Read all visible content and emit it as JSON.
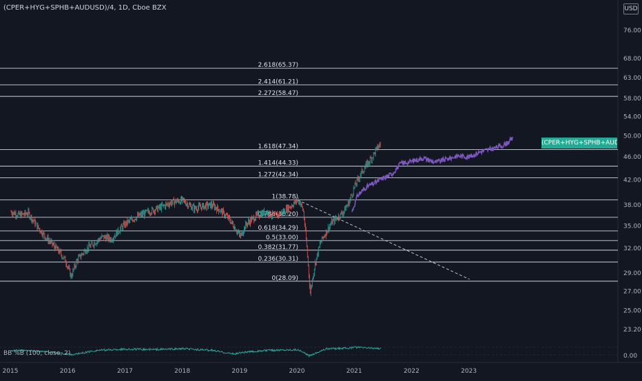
{
  "header": {
    "title": "(CPER+HYG+SPHB+AUDUSD)/4, 1D, Cboe BZX",
    "currency_badge": "USD"
  },
  "indicator": {
    "label": "BB %B (100, close, 2)"
  },
  "series_tag": "(CPER+HYG+SPHB+AUDUSD)/4",
  "colors": {
    "background": "#131722",
    "up_candle": "#26a69a",
    "down_candle": "#ef5350",
    "projection": "#7e57c2",
    "fib_line": "#d1d4dc",
    "bb_line": "#26a69a",
    "tag": "#22ab94"
  },
  "chart_data": [
    {
      "type": "line",
      "title": "",
      "x_ticks": [
        "2015",
        "2016",
        "2017",
        "2018",
        "2019",
        "2020",
        "2021",
        "2022",
        "2023"
      ],
      "y_ticks": [
        76.0,
        68.0,
        63.0,
        58.0,
        54.0,
        50.0,
        46.0,
        42.0,
        38.0,
        35.0,
        32.0,
        29.0,
        27.0,
        25.0,
        23.2
      ],
      "ylim": [
        21.5,
        82
      ],
      "scale": "log",
      "grid": false,
      "series": [
        {
          "name": "(CPER+HYG+SPHB+AUDUSD)/4",
          "x": [
            2015.0,
            2015.15,
            2015.3,
            2015.45,
            2015.6,
            2015.75,
            2015.85,
            2015.95,
            2016.05,
            2016.15,
            2016.3,
            2016.45,
            2016.6,
            2016.75,
            2016.9,
            2017.0,
            2017.2,
            2017.4,
            2017.6,
            2017.8,
            2018.0,
            2018.1,
            2018.2,
            2018.35,
            2018.5,
            2018.65,
            2018.8,
            2018.9,
            2019.0,
            2019.1,
            2019.3,
            2019.45,
            2019.6,
            2019.75,
            2019.9,
            2020.0,
            2020.05,
            2020.1,
            2020.15,
            2020.2,
            2020.22,
            2020.3,
            2020.4,
            2020.5,
            2020.6,
            2020.7,
            2020.8,
            2020.9,
            2021.0,
            2021.1,
            2021.2,
            2021.3,
            2021.4,
            2021.45
          ],
          "values": [
            37.0,
            36.5,
            36.8,
            35.0,
            33.5,
            32.3,
            31.5,
            30.5,
            28.6,
            30.5,
            31.8,
            32.7,
            33.5,
            33.2,
            34.5,
            35.3,
            36.3,
            37.0,
            37.6,
            38.4,
            38.7,
            38.0,
            37.5,
            37.8,
            38.0,
            37.2,
            36.0,
            34.8,
            33.5,
            35.2,
            36.5,
            37.0,
            36.3,
            37.0,
            38.0,
            38.78,
            38.3,
            37.0,
            33.0,
            28.5,
            26.8,
            30.0,
            32.8,
            34.2,
            35.5,
            36.2,
            37.0,
            38.5,
            41.0,
            43.0,
            44.5,
            46.0,
            47.8,
            48.5
          ]
        },
        {
          "name": "projection",
          "x": [
            2020.95,
            2021.05,
            2021.2,
            2021.35,
            2021.5,
            2021.65,
            2021.8,
            2022.0,
            2022.2,
            2022.4,
            2022.6,
            2022.8,
            2023.0,
            2023.2,
            2023.4,
            2023.6,
            2023.75
          ],
          "values": [
            37.0,
            39.5,
            40.8,
            41.5,
            42.3,
            43.0,
            44.8,
            45.2,
            45.8,
            45.0,
            45.6,
            46.2,
            46.0,
            47.0,
            47.5,
            48.2,
            49.4
          ]
        }
      ],
      "fib_levels": [
        {
          "label": "2.618(65.37)",
          "value": 65.37
        },
        {
          "label": "2.414(61.21)",
          "value": 61.21
        },
        {
          "label": "2.272(58.47)",
          "value": 58.47
        },
        {
          "label": "1.618(47.34)",
          "value": 47.34
        },
        {
          "label": "1.414(44.33)",
          "value": 44.33
        },
        {
          "label": "1.272(42.34)",
          "value": 42.34
        },
        {
          "label": "1(38.78)",
          "value": 38.78
        },
        {
          "label": "0.786(36.20)",
          "value": 36.2
        },
        {
          "label": "0.618(34.29)",
          "value": 34.29
        },
        {
          "label": "0.5(33.00)",
          "value": 33.0
        },
        {
          "label": "0.382(31.77)",
          "value": 31.77
        },
        {
          "label": "0.236(30.31)",
          "value": 30.31
        },
        {
          "label": "0(28.09)",
          "value": 28.09
        }
      ],
      "trendline": {
        "x": [
          2020.0,
          2023.0
        ],
        "values": [
          38.78,
          28.3
        ]
      }
    },
    {
      "type": "line",
      "title": "BB %B (100, close, 2)",
      "y_ticks": [
        "0.00"
      ],
      "series": [
        {
          "name": "BB %B",
          "x": [
            2015.0,
            2015.5,
            2016.0,
            2016.1,
            2016.5,
            2017.0,
            2017.5,
            2018.0,
            2018.5,
            2018.9,
            2019.0,
            2019.5,
            2020.0,
            2020.2,
            2020.25,
            2020.5,
            2020.9,
            2021.0,
            2021.45
          ],
          "values": [
            0.6,
            0.5,
            0.1,
            0.05,
            0.6,
            0.75,
            0.7,
            0.8,
            0.6,
            0.1,
            0.3,
            0.6,
            0.7,
            -0.1,
            0.05,
            0.8,
            0.9,
            1.0,
            0.85
          ]
        }
      ]
    }
  ]
}
